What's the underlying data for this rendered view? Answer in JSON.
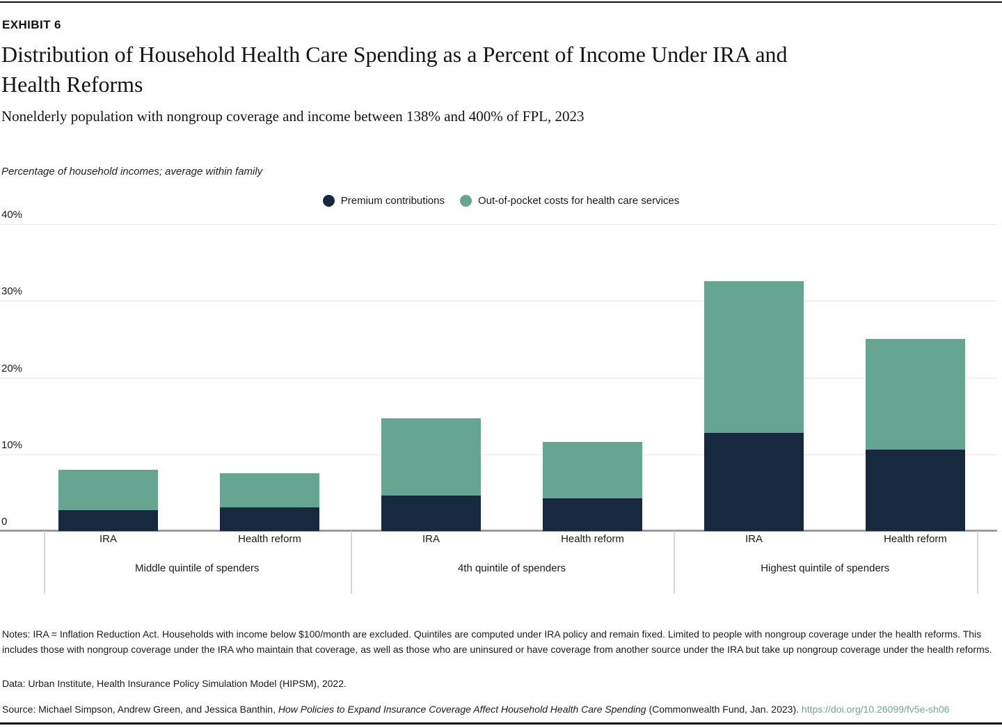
{
  "header": {
    "exhibit_label": "EXHIBIT 6",
    "title_line1": "Distribution of Household Health Care Spending as a Percent of Income Under IRA and",
    "title_line2": "Health Reforms",
    "subtitle": "Nonelderly population with nongroup coverage and income between 138% and 400% of FPL, 2023"
  },
  "chart": {
    "axis_note": "Percentage of household incomes; average within family",
    "legend": [
      {
        "label": "Premium contributions",
        "color": "#16293e"
      },
      {
        "label": "Out-of-pocket costs for health care services",
        "color": "#65a591"
      }
    ]
  },
  "chart_data": {
    "type": "bar",
    "stacked": true,
    "title": "Distribution of Household Health Care Spending as a Percent of Income Under IRA and Health Reforms",
    "subtitle": "Nonelderly population with nongroup coverage and income between 138% and 400% of FPL, 2023",
    "ylabel": "Percentage of household incomes; average within family",
    "ylim": [
      0,
      40
    ],
    "y_ticks": [
      {
        "label": "40%",
        "value": 40
      },
      {
        "label": "30%",
        "value": 30
      },
      {
        "label": "20%",
        "value": 20
      },
      {
        "label": "10%",
        "value": 10
      },
      {
        "label": "0",
        "value": 0
      }
    ],
    "grid": "horizontal",
    "legend_position": "top-center",
    "series_meta": [
      {
        "name": "Premium contributions",
        "color": "#16293e"
      },
      {
        "name": "Out-of-pocket costs for health care services",
        "color": "#65a591"
      }
    ],
    "groups": [
      {
        "label": "Middle quintile of spenders",
        "bars": [
          {
            "label": "IRA",
            "premium_contributions": 2.7,
            "out_of_pocket_costs": 5.3
          },
          {
            "label": "Health reform",
            "premium_contributions": 3.1,
            "out_of_pocket_costs": 4.4
          }
        ]
      },
      {
        "label": "4th quintile of spenders",
        "bars": [
          {
            "label": "IRA",
            "premium_contributions": 4.6,
            "out_of_pocket_costs": 10.1
          },
          {
            "label": "Health reform",
            "premium_contributions": 4.3,
            "out_of_pocket_costs": 7.3
          }
        ]
      },
      {
        "label": "Highest quintile of spenders",
        "bars": [
          {
            "label": "IRA",
            "premium_contributions": 12.8,
            "out_of_pocket_costs": 19.8
          },
          {
            "label": "Health reform",
            "premium_contributions": 10.6,
            "out_of_pocket_costs": 14.4
          }
        ]
      }
    ]
  },
  "footer": {
    "notes": "Notes: IRA = Inflation Reduction Act. Households with income below $100/month are excluded. Quintiles are computed under IRA policy and remain fixed. Limited to people with nongroup coverage under the health reforms. This includes those with nongroup coverage under the IRA who maintain that coverage, as well as those who are uninsured or have coverage from another source under the IRA but take up nongroup coverage under the health reforms.",
    "data_line": "Data: Urban Institute, Health Insurance Policy Simulation Model (HIPSM), 2022.",
    "source_prefix": "Source: Michael Simpson, Andrew Green, and Jessica Banthin, ",
    "source_title": "How Policies to Expand Insurance Coverage Affect Household Health Care Spending",
    "source_suffix": " (Commonwealth Fund, Jan. 2023). ",
    "source_link": "https://doi.org/10.26099/fv5e-sh06",
    "link_color": "#68ab97"
  }
}
